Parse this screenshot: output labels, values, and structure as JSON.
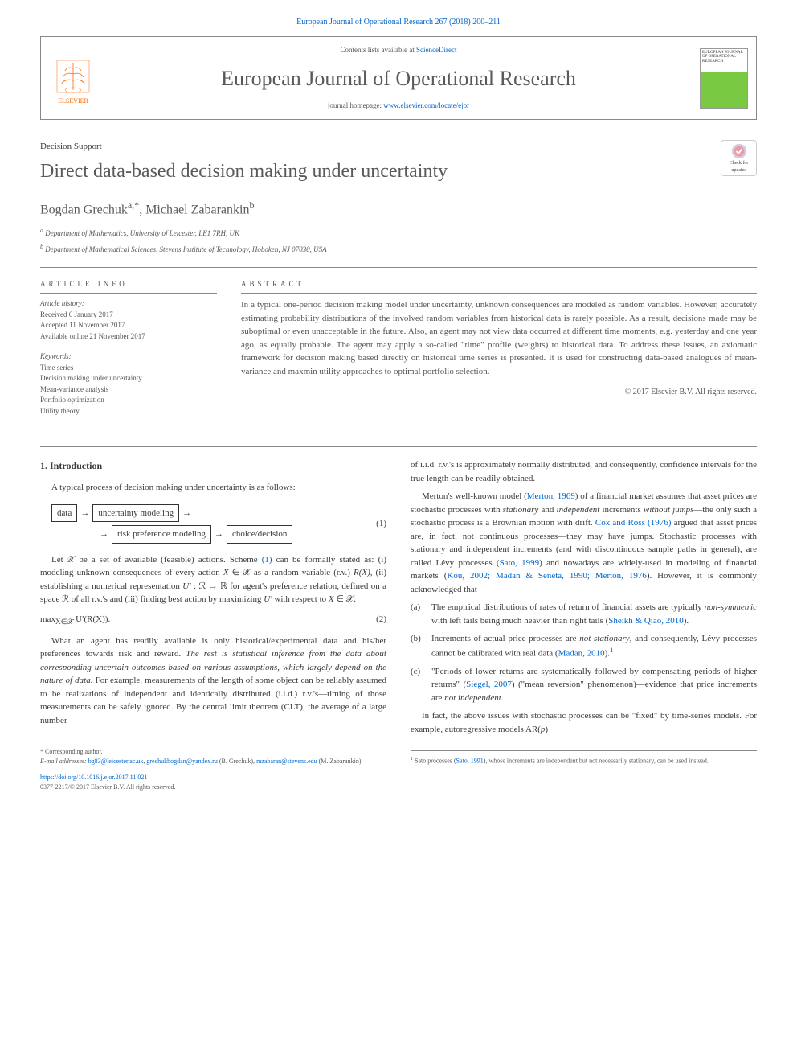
{
  "journal_ref": "European Journal of Operational Research 267 (2018) 200–211",
  "header": {
    "contents_prefix": "Contents lists available at ",
    "contents_link": "ScienceDirect",
    "journal_title": "European Journal of Operational Research",
    "homepage_prefix": "journal homepage: ",
    "homepage_link": "www.elsevier.com/locate/ejor",
    "publisher": "ELSEVIER",
    "cover_text": "EUROPEAN JOURNAL OF OPERATIONAL RESEARCH"
  },
  "section_label": "Decision Support",
  "paper_title": "Direct data-based decision making under uncertainty",
  "check_badge": "Check for updates",
  "authors_html": "Bogdan Grechuk<sup>a,*</sup>, Michael Zabarankin<sup>b</sup>",
  "affiliations": [
    "<sup>a</sup> Department of Mathematics, University of Leicester, LE1 7RH, UK",
    "<sup>b</sup> Department of Mathematical Sciences, Stevens Institute of Technology, Hoboken, NJ 07030, USA"
  ],
  "article_info": {
    "header": "ARTICLE INFO",
    "history_label": "Article history:",
    "history": [
      "Received 6 January 2017",
      "Accepted 11 November 2017",
      "Available online 21 November 2017"
    ],
    "keywords_label": "Keywords:",
    "keywords": [
      "Time series",
      "Decision making under uncertainty",
      "Mean-variance analysis",
      "Portfolio optimization",
      "Utility theory"
    ]
  },
  "abstract": {
    "header": "ABSTRACT",
    "text": "In a typical one-period decision making model under uncertainty, unknown consequences are modeled as random variables. However, accurately estimating probability distributions of the involved random variables from historical data is rarely possible. As a result, decisions made may be suboptimal or even unacceptable in the future. Also, an agent may not view data occurred at different time moments, e.g. yesterday and one year ago, as equally probable. The agent may apply a so-called \"time\" profile (weights) to historical data. To address these issues, an axiomatic framework for decision making based directly on historical time series is presented. It is used for constructing data-based analogues of mean-variance and maxmin utility approaches to optimal portfolio selection.",
    "copyright": "© 2017 Elsevier B.V. All rights reserved."
  },
  "intro": {
    "heading": "1. Introduction",
    "p1": "A typical process of decision making under uncertainty is as follows:",
    "flow": {
      "b1": "data",
      "b2": "uncertainty modeling",
      "b3": "risk preference modeling",
      "b4": "choice/decision",
      "eqnum": "(1)"
    },
    "p2": "Let 𝒳 be a set of available (feasible) actions. Scheme <span class='link'>(1)</span> can be formally stated as: (i) modeling unknown consequences of every action <span class='italic'>X</span> ∈ 𝒳 as a random variable (r.v.) <span class='italic'>R(X)</span>, (ii) establishing a numerical representation <span class='italic'>U′</span> : ℛ → ℝ for agent's preference relation, defined on a space ℛ of all r.v.'s and (iii) finding best action by maximizing <span class='italic'>U′</span> with respect to <span class='italic'>X</span> ∈ 𝒳:",
    "eq2": "max<sub>X∈𝒳</sub> U′(R(X)).",
    "eq2num": "(2)",
    "p3": "What an agent has readily available is only historical/experimental data and his/her preferences towards risk and reward. <span class='italic'>The rest is statistical inference from the data about corresponding uncertain outcomes based on various assumptions, which largely depend on the nature of data.</span> For example, measurements of the length of some object can be reliably assumed to be realizations of independent and identically distributed (i.i.d.) r.v.'s—timing of those measurements can be safely ignored. By the central limit theorem (CLT), the average of a large number"
  },
  "col2": {
    "p1": "of i.i.d. r.v.'s is approximately normally distributed, and consequently, confidence intervals for the true length can be readily obtained.",
    "p2": "Merton's well-known model (<span class='link'>Merton, 1969</span>) of a financial market assumes that asset prices are stochastic processes with <span class='italic'>stationary</span> and <span class='italic'>independent</span> increments <span class='italic'>without jumps</span>—the only such a stochastic process is a Brownian motion with drift. <span class='link'>Cox and Ross (1976)</span> argued that asset prices are, in fact, not continuous processes—they may have jumps. Stochastic processes with stationary and independent increments (and with discontinuous sample paths in general), are called Lévy processes (<span class='link'>Sato, 1999</span>) and nowadays are widely-used in modeling of financial markets (<span class='link'>Kou, 2002; Madan &amp; Seneta, 1990; Merton, 1976</span>). However, it is commonly acknowledged that",
    "list": [
      {
        "label": "(a)",
        "text": "The empirical distributions of rates of return of financial assets are typically <span class='italic'>non-symmetric</span> with left tails being much heavier than right tails (<span class='link'>Sheikh &amp; Qiao, 2010</span>)."
      },
      {
        "label": "(b)",
        "text": "Increments of actual price processes are <span class='italic'>not stationary</span>, and consequently, Lévy processes cannot be calibrated with real data (<span class='link'>Madan, 2010</span>).<sup>1</sup>"
      },
      {
        "label": "(c)",
        "text": "\"Periods of lower returns are systematically followed by compensating periods of higher returns\" (<span class='link'>Siegel, 2007</span>) (\"mean reversion\" phenomenon)—evidence that price increments are <span class='italic'>not independent</span>."
      }
    ],
    "p3": "In fact, the above issues with stochastic processes can be \"fixed\" by time-series models. For example, autoregressive models AR(<span class='italic'>p</span>)"
  },
  "footnotes": {
    "left": {
      "corr": "* Corresponding author.",
      "email_label": "E-mail addresses:",
      "email1": "bg83@leicester.ac.uk",
      "email1b": "grechukbogdan@yandex.ru",
      "name1": "(B. Grechuk),",
      "email2": "mzabaran@stevens.edu",
      "name2": "(M. Zabarankin)."
    },
    "right": "<sup>1</sup> Sato processes (<span class='link'>Sato, 1991</span>), whose increments are independent but not necessarily stationary, can be used instead."
  },
  "doi": {
    "link": "https://doi.org/10.1016/j.ejor.2017.11.021",
    "issn": "0377-2217/© 2017 Elsevier B.V. All rights reserved."
  },
  "colors": {
    "link": "#0066cc",
    "orange": "#ff6600",
    "green": "#7ac943",
    "text": "#3a3a3a",
    "muted": "#555555",
    "rule": "#888888"
  }
}
